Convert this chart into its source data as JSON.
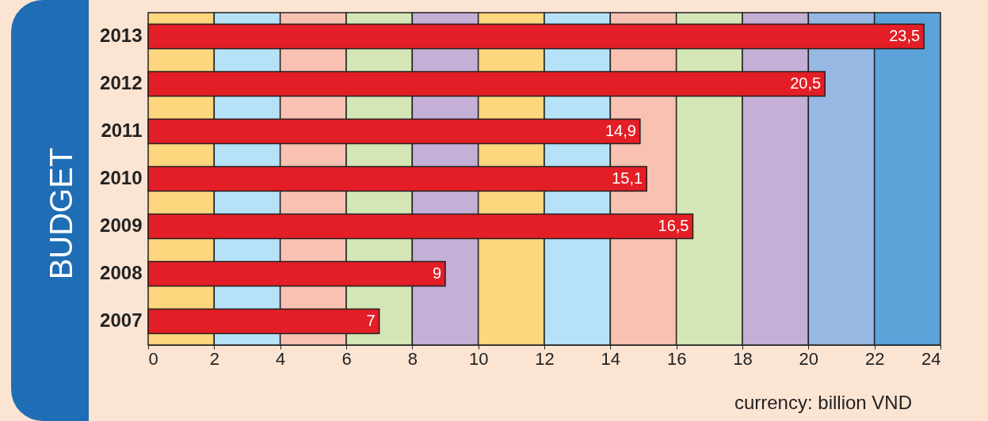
{
  "chart_data": {
    "type": "bar",
    "orientation": "horizontal",
    "ylabel": "BUDGET",
    "categories": [
      "2013",
      "2012",
      "2011",
      "2010",
      "2009",
      "2008",
      "2007"
    ],
    "values": [
      23.5,
      20.5,
      14.9,
      15.1,
      16.5,
      9,
      7
    ],
    "value_labels": [
      "23,5",
      "20,5",
      "14,9",
      "15,1",
      "16,5",
      "9",
      "7"
    ],
    "color": "#e31e26",
    "xlim": [
      0,
      24
    ],
    "xticks": [
      0,
      2,
      4,
      6,
      8,
      10,
      12,
      14,
      16,
      18,
      20,
      22,
      24
    ],
    "bands": [
      {
        "axis": "x",
        "from": 0,
        "to": 2,
        "color": "#fdd67e"
      },
      {
        "axis": "x",
        "from": 2,
        "to": 4,
        "color": "#b5e2f6"
      },
      {
        "axis": "x",
        "from": 4,
        "to": 6,
        "color": "#f8c1b2"
      },
      {
        "axis": "x",
        "from": 6,
        "to": 8,
        "color": "#d5e6b6"
      },
      {
        "axis": "x",
        "from": 8,
        "to": 10,
        "color": "#c4afd6"
      },
      {
        "axis": "x",
        "from": 10,
        "to": 12,
        "color": "#fdd67e"
      },
      {
        "axis": "x",
        "from": 12,
        "to": 14,
        "color": "#b5e2f6"
      },
      {
        "axis": "x",
        "from": 14,
        "to": 16,
        "color": "#f8c1b2"
      },
      {
        "axis": "x",
        "from": 16,
        "to": 18,
        "color": "#d5e6b6"
      },
      {
        "axis": "x",
        "from": 18,
        "to": 20,
        "color": "#c4afd6"
      },
      {
        "axis": "x",
        "from": 20,
        "to": 22,
        "color": "#96b8e2"
      },
      {
        "axis": "x",
        "from": 22,
        "to": 24,
        "color": "#5ba3d9"
      }
    ],
    "annotations": [
      "currency: billion VND"
    ]
  }
}
